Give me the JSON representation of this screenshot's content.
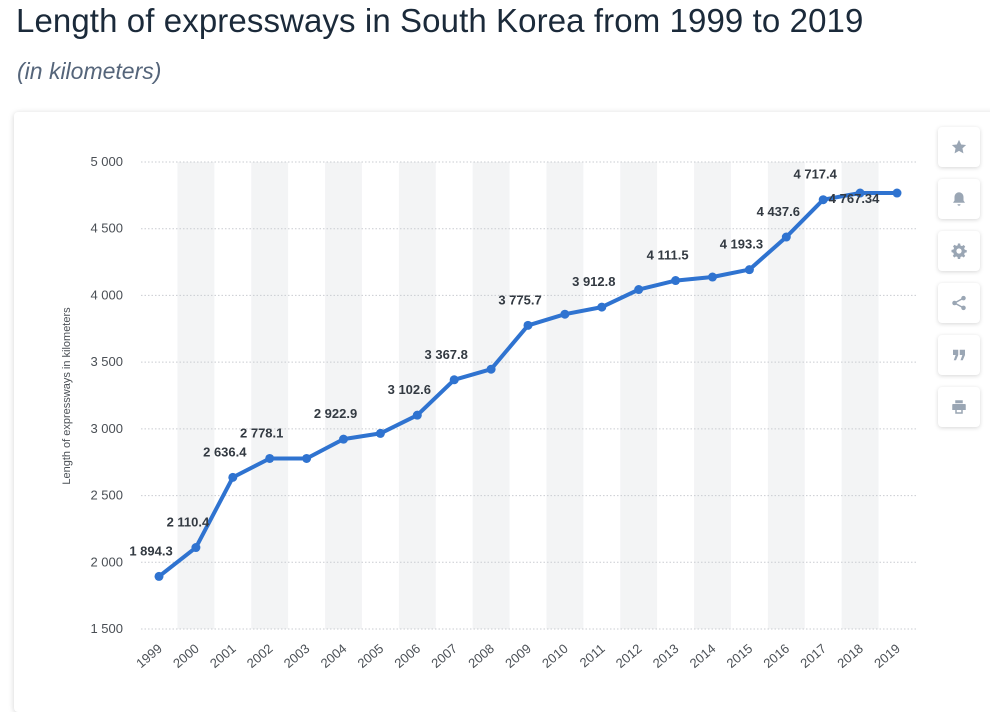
{
  "header": {
    "title": "Length of expressways in South Korea from 1999 to 2019",
    "subtitle": "(in kilometers)"
  },
  "toolbar": {
    "items": [
      {
        "icon": "star-icon"
      },
      {
        "icon": "bell-icon"
      },
      {
        "icon": "gear-icon"
      },
      {
        "icon": "share-icon"
      },
      {
        "icon": "quote-icon"
      },
      {
        "icon": "print-icon"
      }
    ]
  },
  "colors": {
    "line": "#2f73d0",
    "grid": "#c9ccd1",
    "band": "#f3f4f5",
    "axis_text": "#4a4f55",
    "label_text": "#333a42"
  },
  "chart_data": {
    "type": "line",
    "title": "",
    "xlabel": "",
    "ylabel": "Length of expressways in kilometers",
    "ylim": [
      1500,
      5000
    ],
    "yticks": [
      1500,
      2000,
      2500,
      3000,
      3500,
      4000,
      4500,
      5000
    ],
    "ytick_labels": [
      "1 500",
      "2 000",
      "2 500",
      "3 000",
      "3 500",
      "4 000",
      "4 500",
      "5 000"
    ],
    "grid": true,
    "legend": "none",
    "categories": [
      "1999",
      "2000",
      "2001",
      "2002",
      "2003",
      "2004",
      "2005",
      "2006",
      "2007",
      "2008",
      "2009",
      "2010",
      "2011",
      "2012",
      "2013",
      "2014",
      "2015",
      "2016",
      "2017",
      "2018",
      "2019"
    ],
    "series": [
      {
        "values": [
          1894.3,
          2110.4,
          2636.4,
          2778.1,
          2778.1,
          2922.9,
          2966,
          3102.6,
          3367.8,
          3447,
          3775.7,
          3859,
          3912.8,
          4044,
          4111.5,
          4138,
          4193.3,
          4437.6,
          4717.4,
          4767.34,
          4767.34
        ],
        "data_labels": [
          {
            "index": 0,
            "text": "1 894.3"
          },
          {
            "index": 1,
            "text": "2 110.4"
          },
          {
            "index": 2,
            "text": "2 636.4"
          },
          {
            "index": 3,
            "text": "2 778.1"
          },
          {
            "index": 5,
            "text": "2 922.9"
          },
          {
            "index": 7,
            "text": "3 102.6"
          },
          {
            "index": 8,
            "text": "3 367.8"
          },
          {
            "index": 10,
            "text": "3 775.7"
          },
          {
            "index": 12,
            "text": "3 912.8"
          },
          {
            "index": 14,
            "text": "4 111.5"
          },
          {
            "index": 16,
            "text": "4 193.3"
          },
          {
            "index": 17,
            "text": "4 437.6"
          },
          {
            "index": 18,
            "text": "4 717.4"
          },
          {
            "index": 19,
            "text": "4 767.34"
          }
        ]
      }
    ]
  }
}
